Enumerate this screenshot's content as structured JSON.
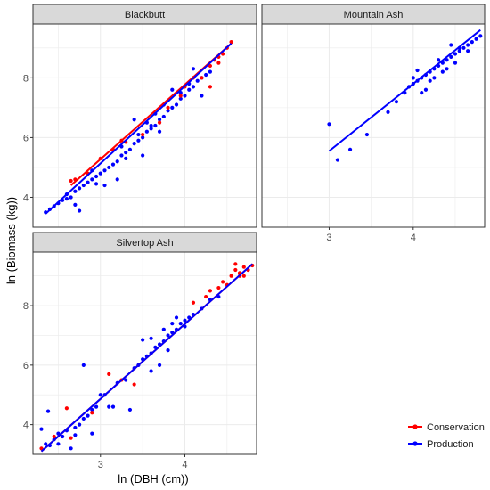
{
  "chart_data": {
    "type": "scatter",
    "xlabel": "ln (DBH (cm))",
    "ylabel": "ln (Biomass (kg))",
    "colors": {
      "Conservation": "#ff0000",
      "Production": "#0000ff"
    },
    "legend": {
      "position": "bottom-right",
      "entries": [
        {
          "name": "Conservation",
          "color": "#ff0000"
        },
        {
          "name": "Production",
          "color": "#0000ff"
        }
      ]
    },
    "grid": true,
    "xlim": [
      2.2,
      4.85
    ],
    "ylim": [
      3.0,
      9.8
    ],
    "xticks": [
      3,
      4
    ],
    "yticks": [
      4,
      6,
      8
    ],
    "panels": [
      {
        "title": "Blackbutt",
        "series": [
          {
            "name": "Production",
            "line": [
              [
                2.35,
                3.45
              ],
              [
                4.55,
                9.15
              ]
            ],
            "points": [
              [
                2.35,
                3.5
              ],
              [
                2.4,
                3.6
              ],
              [
                2.45,
                3.7
              ],
              [
                2.5,
                3.8
              ],
              [
                2.55,
                3.9
              ],
              [
                2.6,
                4.1
              ],
              [
                2.65,
                4.0
              ],
              [
                2.7,
                4.2
              ],
              [
                2.75,
                4.3
              ],
              [
                2.7,
                3.75
              ],
              [
                2.75,
                3.55
              ],
              [
                2.8,
                4.4
              ],
              [
                2.85,
                4.5
              ],
              [
                2.9,
                4.6
              ],
              [
                2.95,
                4.7
              ],
              [
                3.0,
                4.8
              ],
              [
                3.05,
                4.9
              ],
              [
                3.1,
                5.0
              ],
              [
                3.15,
                5.1
              ],
              [
                3.2,
                5.2
              ],
              [
                3.25,
                5.4
              ],
              [
                3.3,
                5.5
              ],
              [
                3.35,
                5.6
              ],
              [
                3.4,
                5.8
              ],
              [
                3.45,
                5.9
              ],
              [
                3.5,
                6.0
              ],
              [
                3.55,
                6.2
              ],
              [
                3.6,
                6.3
              ],
              [
                3.65,
                6.4
              ],
              [
                3.7,
                6.6
              ],
              [
                3.75,
                6.7
              ],
              [
                3.8,
                6.9
              ],
              [
                3.85,
                7.0
              ],
              [
                3.9,
                7.1
              ],
              [
                3.95,
                7.3
              ],
              [
                4.0,
                7.4
              ],
              [
                4.05,
                7.6
              ],
              [
                4.1,
                7.7
              ],
              [
                4.15,
                7.9
              ],
              [
                4.2,
                8.0
              ],
              [
                4.25,
                8.1
              ],
              [
                4.3,
                8.2
              ],
              [
                3.4,
                6.6
              ],
              [
                3.6,
                6.4
              ],
              [
                3.85,
                7.6
              ],
              [
                3.05,
                4.4
              ],
              [
                3.2,
                4.6
              ],
              [
                3.5,
                5.4
              ],
              [
                3.7,
                6.2
              ],
              [
                4.1,
                8.3
              ],
              [
                4.2,
                7.4
              ],
              [
                3.3,
                5.3
              ],
              [
                2.9,
                4.9
              ],
              [
                2.95,
                4.45
              ],
              [
                3.25,
                5.7
              ],
              [
                3.55,
                6.5
              ],
              [
                3.75,
                7.1
              ],
              [
                3.95,
                7.5
              ],
              [
                4.05,
                7.8
              ],
              [
                3.45,
                6.1
              ],
              [
                3.65,
                6.8
              ],
              [
                2.6,
                3.95
              ]
            ]
          },
          {
            "name": "Conservation",
            "line": [
              [
                2.65,
                4.4
              ],
              [
                4.55,
                9.15
              ]
            ],
            "points": [
              [
                2.65,
                4.55
              ],
              [
                2.7,
                4.6
              ],
              [
                2.85,
                4.8
              ],
              [
                3.0,
                5.3
              ],
              [
                3.15,
                5.6
              ],
              [
                3.25,
                5.9
              ],
              [
                3.3,
                5.85
              ],
              [
                3.5,
                6.1
              ],
              [
                3.7,
                6.5
              ],
              [
                3.8,
                7.0
              ],
              [
                3.95,
                7.4
              ],
              [
                4.0,
                7.7
              ],
              [
                4.1,
                8.0
              ],
              [
                4.2,
                8.0
              ],
              [
                4.3,
                8.4
              ],
              [
                4.35,
                8.6
              ],
              [
                4.4,
                8.7
              ],
              [
                4.45,
                8.8
              ],
              [
                4.5,
                9.0
              ],
              [
                4.55,
                9.2
              ],
              [
                4.3,
                7.7
              ],
              [
                4.4,
                8.5
              ]
            ]
          }
        ]
      },
      {
        "title": "Mountain Ash",
        "series": [
          {
            "name": "Production",
            "line": [
              [
                3.0,
                5.55
              ],
              [
                4.8,
                9.6
              ]
            ],
            "points": [
              [
                3.0,
                6.45
              ],
              [
                3.1,
                5.25
              ],
              [
                3.25,
                5.6
              ],
              [
                3.45,
                6.1
              ],
              [
                3.7,
                6.85
              ],
              [
                3.8,
                7.2
              ],
              [
                3.9,
                7.5
              ],
              [
                3.95,
                7.7
              ],
              [
                4.0,
                7.8
              ],
              [
                4.05,
                7.9
              ],
              [
                4.1,
                8.0
              ],
              [
                4.15,
                8.1
              ],
              [
                4.2,
                8.2
              ],
              [
                4.25,
                8.3
              ],
              [
                4.3,
                8.4
              ],
              [
                4.35,
                8.5
              ],
              [
                4.4,
                8.6
              ],
              [
                4.45,
                8.7
              ],
              [
                4.5,
                8.8
              ],
              [
                4.55,
                8.9
              ],
              [
                4.6,
                9.0
              ],
              [
                4.65,
                9.1
              ],
              [
                4.7,
                9.2
              ],
              [
                4.75,
                9.3
              ],
              [
                4.8,
                9.4
              ],
              [
                4.45,
                9.1
              ],
              [
                4.55,
                9.0
              ],
              [
                4.05,
                8.25
              ],
              [
                4.15,
                7.6
              ],
              [
                4.25,
                8.0
              ],
              [
                4.35,
                8.2
              ],
              [
                4.5,
                8.5
              ],
              [
                4.65,
                8.9
              ],
              [
                4.0,
                8.0
              ],
              [
                4.1,
                7.5
              ],
              [
                4.2,
                7.9
              ],
              [
                4.3,
                8.6
              ],
              [
                4.4,
                8.3
              ]
            ]
          }
        ]
      },
      {
        "title": "Silvertop Ash",
        "series": [
          {
            "name": "Production",
            "line": [
              [
                2.3,
                3.1
              ],
              [
                4.8,
                9.4
              ]
            ],
            "points": [
              [
                2.3,
                3.85
              ],
              [
                2.35,
                3.35
              ],
              [
                2.4,
                3.3
              ],
              [
                2.45,
                3.5
              ],
              [
                2.5,
                3.7
              ],
              [
                2.55,
                3.6
              ],
              [
                2.6,
                3.8
              ],
              [
                2.65,
                3.2
              ],
              [
                2.7,
                3.9
              ],
              [
                2.75,
                4.0
              ],
              [
                2.8,
                4.2
              ],
              [
                2.85,
                4.3
              ],
              [
                2.8,
                6.0
              ],
              [
                2.9,
                4.5
              ],
              [
                2.95,
                4.6
              ],
              [
                3.0,
                5.0
              ],
              [
                3.05,
                5.0
              ],
              [
                3.1,
                4.6
              ],
              [
                3.15,
                4.6
              ],
              [
                3.2,
                5.4
              ],
              [
                3.3,
                5.5
              ],
              [
                3.35,
                4.5
              ],
              [
                3.4,
                5.9
              ],
              [
                3.45,
                6.0
              ],
              [
                3.5,
                6.2
              ],
              [
                3.55,
                6.3
              ],
              [
                3.6,
                6.4
              ],
              [
                3.65,
                6.6
              ],
              [
                3.7,
                6.7
              ],
              [
                3.75,
                6.8
              ],
              [
                3.8,
                7.0
              ],
              [
                3.85,
                7.1
              ],
              [
                3.9,
                7.2
              ],
              [
                3.95,
                7.4
              ],
              [
                4.0,
                7.5
              ],
              [
                4.05,
                7.6
              ],
              [
                4.1,
                7.7
              ],
              [
                4.2,
                7.9
              ],
              [
                4.3,
                8.2
              ],
              [
                4.4,
                8.3
              ],
              [
                3.6,
                5.8
              ],
              [
                3.7,
                6.0
              ],
              [
                3.5,
                6.85
              ],
              [
                3.9,
                7.6
              ],
              [
                4.0,
                7.3
              ],
              [
                3.75,
                7.2
              ],
              [
                3.85,
                7.4
              ],
              [
                2.7,
                3.65
              ],
              [
                2.5,
                3.35
              ],
              [
                2.38,
                4.45
              ],
              [
                2.9,
                3.7
              ],
              [
                3.6,
                6.9
              ],
              [
                3.8,
                6.5
              ]
            ]
          },
          {
            "name": "Conservation",
            "line": [
              [
                2.3,
                3.1
              ],
              [
                4.8,
                9.4
              ]
            ],
            "points": [
              [
                2.3,
                3.2
              ],
              [
                2.45,
                3.6
              ],
              [
                2.6,
                4.55
              ],
              [
                2.65,
                3.55
              ],
              [
                2.9,
                4.4
              ],
              [
                3.1,
                5.7
              ],
              [
                3.25,
                5.5
              ],
              [
                3.4,
                5.35
              ],
              [
                4.1,
                8.1
              ],
              [
                4.25,
                8.3
              ],
              [
                4.3,
                8.5
              ],
              [
                4.4,
                8.6
              ],
              [
                4.45,
                8.8
              ],
              [
                4.5,
                8.7
              ],
              [
                4.55,
                9.0
              ],
              [
                4.6,
                9.2
              ],
              [
                4.65,
                9.1
              ],
              [
                4.7,
                9.3
              ],
              [
                4.75,
                9.2
              ],
              [
                4.8,
                9.35
              ],
              [
                4.6,
                9.4
              ],
              [
                4.65,
                9.0
              ],
              [
                4.7,
                9.0
              ]
            ]
          }
        ]
      }
    ]
  }
}
